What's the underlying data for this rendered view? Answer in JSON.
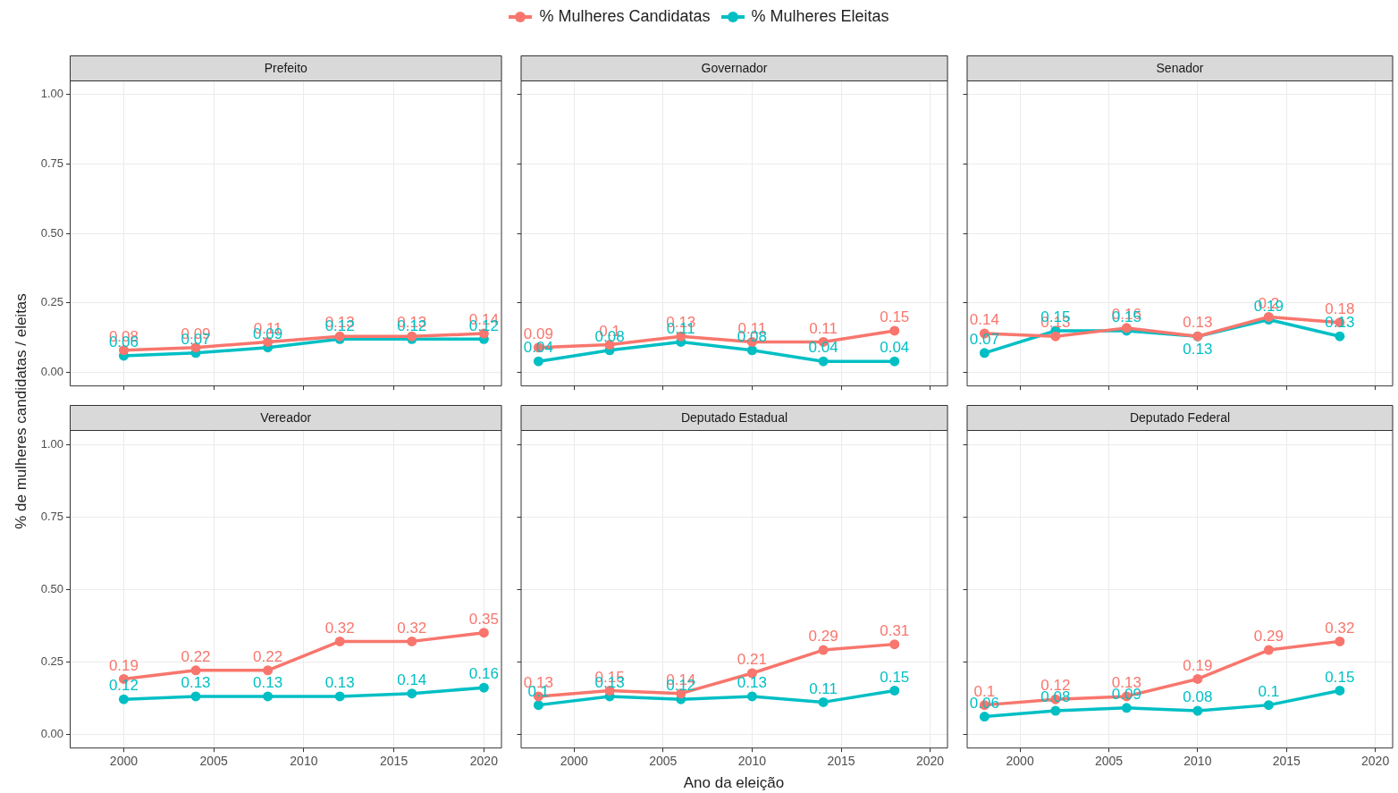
{
  "chart_data": [
    {
      "type": "line",
      "title": "Prefeito",
      "ylabel": "% de mulheres candidatas / eleitas",
      "legend": "top",
      "grid": true,
      "marker": "circle",
      "data_labels": true,
      "tick_labels": "y",
      "x": [
        2000,
        2004,
        2008,
        2012,
        2016,
        2020
      ],
      "xlim": [
        1997,
        2021
      ],
      "xticks": [
        2000,
        2005,
        2010,
        2015,
        2020
      ],
      "ylim": [
        -0.05,
        1.05
      ],
      "yticks": [
        {
          "value": 0,
          "label": "0.00"
        },
        {
          "value": 0.25,
          "label": "0.25"
        },
        {
          "value": 0.5,
          "label": "0.50"
        },
        {
          "value": 0.75,
          "label": "0.75"
        },
        {
          "value": 1,
          "label": "1.00"
        }
      ],
      "series": [
        {
          "name": "% Mulheres Candidatas",
          "color": "#f8766d",
          "values": [
            0.08,
            0.09,
            0.11,
            0.13,
            0.13,
            0.14
          ]
        },
        {
          "name": "% Mulheres Eleitas",
          "color": "#00bfc4",
          "values": [
            0.06,
            0.07,
            0.09,
            0.12,
            0.12,
            0.12
          ]
        }
      ]
    },
    {
      "type": "line",
      "title": "Governador",
      "grid": true,
      "marker": "circle",
      "data_labels": true,
      "tick_labels": false,
      "x": [
        1998,
        2002,
        2006,
        2010,
        2014,
        2018
      ],
      "xlim": [
        1997,
        2021
      ],
      "xticks": [
        2000,
        2005,
        2010,
        2015,
        2020
      ],
      "ylim": [
        -0.05,
        1.05
      ],
      "yticks": [
        0,
        0.25,
        0.5,
        0.75,
        1
      ],
      "series": [
        {
          "color": "#f8766d",
          "values": [
            0.09,
            0.1,
            0.13,
            0.11,
            0.11,
            0.15
          ]
        },
        {
          "color": "#00bfc4",
          "values": [
            0.04,
            0.08,
            0.11,
            0.08,
            0.04,
            0.04
          ]
        }
      ]
    },
    {
      "type": "line",
      "title": "Senador",
      "grid": true,
      "marker": "circle",
      "data_labels": true,
      "tick_labels": false,
      "x": [
        1998,
        2002,
        2006,
        2010,
        2014,
        2018
      ],
      "xlim": [
        1997,
        2021
      ],
      "xticks": [
        2000,
        2005,
        2010,
        2015,
        2020
      ],
      "ylim": [
        -0.05,
        1.05
      ],
      "yticks": [
        0,
        0.25,
        0.5,
        0.75,
        1
      ],
      "series": [
        {
          "color": "#f8766d",
          "values": [
            0.14,
            0.13,
            0.16,
            0.13,
            0.2,
            0.18
          ]
        },
        {
          "color": "#00bfc4",
          "values": [
            0.07,
            0.15,
            0.15,
            0.13,
            0.19,
            0.13
          ]
        }
      ]
    },
    {
      "type": "line",
      "title": "Vereador",
      "grid": true,
      "marker": "circle",
      "data_labels": true,
      "x": [
        2000,
        2004,
        2008,
        2012,
        2016,
        2020
      ],
      "xlim": [
        1997,
        2021
      ],
      "xticks": [
        2000,
        2005,
        2010,
        2015,
        2020
      ],
      "ylim": [
        -0.05,
        1.05
      ],
      "yticks": [
        {
          "value": 0,
          "label": "0.00"
        },
        {
          "value": 0.25,
          "label": "0.25"
        },
        {
          "value": 0.5,
          "label": "0.50"
        },
        {
          "value": 0.75,
          "label": "0.75"
        },
        {
          "value": 1,
          "label": "1.00"
        }
      ],
      "series": [
        {
          "color": "#f8766d",
          "values": [
            0.19,
            0.22,
            0.22,
            0.32,
            0.32,
            0.35
          ]
        },
        {
          "color": "#00bfc4",
          "values": [
            0.12,
            0.13,
            0.13,
            0.13,
            0.14,
            0.16
          ]
        }
      ]
    },
    {
      "type": "line",
      "title": "Deputado Estadual",
      "xlabel": "Ano da eleição",
      "grid": true,
      "marker": "circle",
      "data_labels": true,
      "tick_labels": "x",
      "x": [
        1998,
        2002,
        2006,
        2010,
        2014,
        2018
      ],
      "xlim": [
        1997,
        2021
      ],
      "xticks": [
        2000,
        2005,
        2010,
        2015,
        2020
      ],
      "ylim": [
        -0.05,
        1.05
      ],
      "yticks": [
        0,
        0.25,
        0.5,
        0.75,
        1
      ],
      "series": [
        {
          "color": "#f8766d",
          "values": [
            0.13,
            0.15,
            0.14,
            0.21,
            0.29,
            0.31
          ]
        },
        {
          "color": "#00bfc4",
          "values": [
            0.1,
            0.13,
            0.12,
            0.13,
            0.11,
            0.15
          ]
        }
      ]
    },
    {
      "type": "line",
      "title": "Deputado Federal",
      "grid": true,
      "marker": "circle",
      "data_labels": true,
      "tick_labels": "x",
      "x": [
        1998,
        2002,
        2006,
        2010,
        2014,
        2018
      ],
      "xlim": [
        1997,
        2021
      ],
      "xticks": [
        2000,
        2005,
        2010,
        2015,
        2020
      ],
      "ylim": [
        -0.05,
        1.05
      ],
      "yticks": [
        0,
        0.25,
        0.5,
        0.75,
        1
      ],
      "series": [
        {
          "color": "#f8766d",
          "values": [
            0.1,
            0.12,
            0.13,
            0.19,
            0.29,
            0.32
          ]
        },
        {
          "color": "#00bfc4",
          "values": [
            0.06,
            0.08,
            0.09,
            0.08,
            0.1,
            0.15
          ]
        }
      ]
    }
  ]
}
